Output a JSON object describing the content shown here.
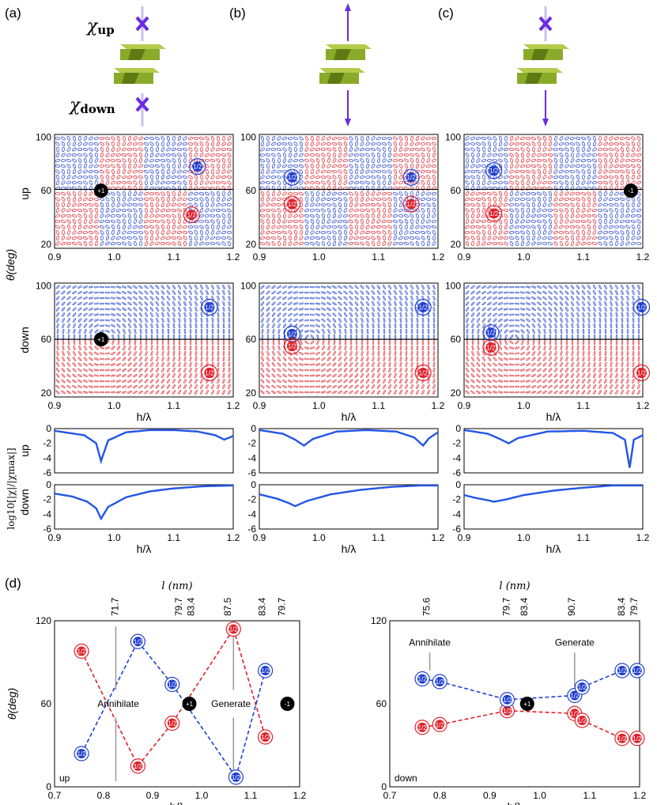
{
  "panel_labels": [
    "(a)",
    "(b)",
    "(c)",
    "(d)"
  ],
  "illustration": {
    "chi_up": "χup",
    "chi_up_sub": "up",
    "chi_down": "χdown",
    "chi_down_sub": "down",
    "chi_symbol": "χ"
  },
  "row_labels": {
    "up": "up",
    "down": "down",
    "theta": "θ(deg)",
    "log_ylabel": "log10[|χ|/|χmax|]"
  },
  "axes": {
    "hlambda": "h/λ",
    "top_l": "l (nm)",
    "grid_xticks": [
      "0.9",
      "1.0",
      "1.1",
      "1.2"
    ],
    "grid_yticks": [
      "20",
      "60",
      "100"
    ],
    "log_yticks": [
      "0",
      "-2",
      "-4",
      "-6"
    ],
    "d_xticks": [
      "0.7",
      "0.8",
      "0.9",
      "1.0",
      "1.1",
      "1.2"
    ],
    "d_yticks": [
      "0",
      "60",
      "120"
    ]
  },
  "charge_labels": {
    "plus_one": "+1",
    "minus_one": "-1",
    "half": "1/2"
  },
  "annotations": {
    "annihilate": "Annihilate",
    "generate": "Generate",
    "up": "up",
    "down": "down"
  },
  "colors": {
    "red": "#e0202a",
    "blue": "#1f3fd0",
    "green": "#8aaa2a",
    "purple": "#6a2be0",
    "curve": "#2255e6"
  },
  "chart_data": [
    {
      "type": "line",
      "panel": "a-up",
      "ylabel": "up",
      "xlabel": "",
      "ylim": [
        -6,
        0
      ],
      "xlim": [
        0.9,
        1.2
      ],
      "x": [
        0.9,
        0.95,
        0.97,
        0.978,
        0.99,
        1.02,
        1.06,
        1.1,
        1.14,
        1.17,
        1.185,
        1.2
      ],
      "y": [
        -0.3,
        -0.9,
        -2.0,
        -4.4,
        -1.6,
        -0.5,
        -0.2,
        -0.2,
        -0.4,
        -0.9,
        -1.5,
        -1.0
      ]
    },
    {
      "type": "line",
      "panel": "a-down",
      "ylabel": "down",
      "xlabel": "h/λ",
      "ylim": [
        -6,
        0
      ],
      "xlim": [
        0.9,
        1.2
      ],
      "x": [
        0.9,
        0.93,
        0.955,
        0.97,
        0.978,
        0.99,
        1.02,
        1.06,
        1.1,
        1.15,
        1.2
      ],
      "y": [
        -1.2,
        -1.6,
        -2.3,
        -3.2,
        -4.6,
        -3.0,
        -1.7,
        -0.9,
        -0.5,
        -0.2,
        -0.1
      ]
    },
    {
      "type": "line",
      "panel": "b-up",
      "ylabel": "up",
      "xlabel": "",
      "ylim": [
        -6,
        0
      ],
      "xlim": [
        0.9,
        1.2
      ],
      "x": [
        0.9,
        0.94,
        0.96,
        0.975,
        0.99,
        1.03,
        1.08,
        1.13,
        1.16,
        1.175,
        1.185,
        1.2
      ],
      "y": [
        -0.2,
        -0.7,
        -1.5,
        -2.3,
        -1.4,
        -0.4,
        -0.2,
        -0.4,
        -1.2,
        -2.3,
        -1.3,
        -0.5
      ]
    },
    {
      "type": "line",
      "panel": "b-down",
      "ylabel": "down",
      "xlabel": "h/λ",
      "ylim": [
        -6,
        0
      ],
      "xlim": [
        0.9,
        1.2
      ],
      "x": [
        0.9,
        0.93,
        0.95,
        0.96,
        0.98,
        1.02,
        1.07,
        1.12,
        1.17,
        1.2
      ],
      "y": [
        -1.3,
        -1.9,
        -2.5,
        -2.9,
        -2.2,
        -1.3,
        -0.7,
        -0.3,
        -0.1,
        -0.1
      ]
    },
    {
      "type": "line",
      "panel": "c-up",
      "ylabel": "up",
      "xlabel": "",
      "ylim": [
        -6,
        0
      ],
      "xlim": [
        0.9,
        1.2
      ],
      "x": [
        0.9,
        0.94,
        0.96,
        0.975,
        0.99,
        1.04,
        1.1,
        1.15,
        1.17,
        1.178,
        1.185,
        1.2
      ],
      "y": [
        -0.2,
        -0.7,
        -1.4,
        -2.0,
        -1.3,
        -0.4,
        -0.3,
        -0.6,
        -1.5,
        -5.3,
        -1.5,
        -0.9
      ]
    },
    {
      "type": "line",
      "panel": "c-down",
      "ylabel": "down",
      "xlabel": "h/λ",
      "ylim": [
        -6,
        0
      ],
      "xlim": [
        0.9,
        1.2
      ],
      "x": [
        0.9,
        0.92,
        0.94,
        0.95,
        0.97,
        1.0,
        1.05,
        1.1,
        1.15,
        1.2
      ],
      "y": [
        -1.4,
        -1.8,
        -2.1,
        -2.3,
        -2.0,
        -1.4,
        -0.8,
        -0.4,
        -0.1,
        -0.1
      ]
    },
    {
      "type": "scatter",
      "panel": "d-up",
      "xlabel": "h/λ",
      "ylabel": "θ(deg)",
      "xlim": [
        0.7,
        1.2
      ],
      "ylim": [
        0,
        120
      ],
      "top_axis_label": "l (nm)",
      "top_ticks": [
        "71.7",
        "79.7",
        "83.4",
        "87.5",
        "83.4",
        "79.7"
      ],
      "top_tick_x": [
        0.83,
        0.96,
        0.985,
        1.06,
        1.13,
        1.17
      ],
      "points": [
        {
          "x": 0.755,
          "y": 98,
          "charge": "1/2",
          "color": "red"
        },
        {
          "x": 0.87,
          "y": 15,
          "charge": "1/2",
          "color": "red"
        },
        {
          "x": 0.94,
          "y": 46,
          "charge": "1/2",
          "color": "red"
        },
        {
          "x": 1.065,
          "y": 114,
          "charge": "1/2",
          "color": "red"
        },
        {
          "x": 1.13,
          "y": 36,
          "charge": "1/2",
          "color": "red"
        },
        {
          "x": 0.755,
          "y": 24,
          "charge": "1/2",
          "color": "blue"
        },
        {
          "x": 0.87,
          "y": 105,
          "charge": "1/2",
          "color": "blue"
        },
        {
          "x": 0.94,
          "y": 74,
          "charge": "1/2",
          "color": "blue"
        },
        {
          "x": 1.07,
          "y": 7,
          "charge": "1/2",
          "color": "blue"
        },
        {
          "x": 1.13,
          "y": 84,
          "charge": "1/2",
          "color": "blue"
        },
        {
          "x": 0.975,
          "y": 60,
          "charge": "+1",
          "color": "black"
        },
        {
          "x": 1.175,
          "y": 60,
          "charge": "-1",
          "color": "black"
        }
      ]
    },
    {
      "type": "scatter",
      "panel": "d-down",
      "xlabel": "h/λ",
      "ylabel": "",
      "xlim": [
        0.7,
        1.2
      ],
      "ylim": [
        0,
        120
      ],
      "top_axis_label": "l (nm)",
      "top_ticks": [
        "75.6",
        "79.7",
        "83.4",
        "90.7",
        "83.4",
        "79.7"
      ],
      "top_tick_x": [
        0.78,
        0.94,
        0.975,
        1.07,
        1.17,
        1.195
      ],
      "points": [
        {
          "x": 0.765,
          "y": 43,
          "charge": "1/2",
          "color": "red"
        },
        {
          "x": 0.8,
          "y": 45,
          "charge": "1/2",
          "color": "red"
        },
        {
          "x": 0.935,
          "y": 55,
          "charge": "1/2",
          "color": "red"
        },
        {
          "x": 1.07,
          "y": 53,
          "charge": "1/2",
          "color": "red"
        },
        {
          "x": 1.085,
          "y": 48,
          "charge": "1/2",
          "color": "red"
        },
        {
          "x": 1.165,
          "y": 35,
          "charge": "1/2",
          "color": "red"
        },
        {
          "x": 1.195,
          "y": 35,
          "charge": "1/2",
          "color": "red"
        },
        {
          "x": 0.765,
          "y": 78,
          "charge": "1/2",
          "color": "blue"
        },
        {
          "x": 0.8,
          "y": 76,
          "charge": "1/2",
          "color": "blue"
        },
        {
          "x": 0.935,
          "y": 63,
          "charge": "1/2",
          "color": "blue"
        },
        {
          "x": 1.07,
          "y": 66,
          "charge": "1/2",
          "color": "blue"
        },
        {
          "x": 1.085,
          "y": 72,
          "charge": "1/2",
          "color": "blue"
        },
        {
          "x": 1.165,
          "y": 84,
          "charge": "1/2",
          "color": "blue"
        },
        {
          "x": 1.195,
          "y": 84,
          "charge": "1/2",
          "color": "blue"
        },
        {
          "x": 0.975,
          "y": 60,
          "charge": "+1",
          "color": "black"
        }
      ]
    }
  ]
}
